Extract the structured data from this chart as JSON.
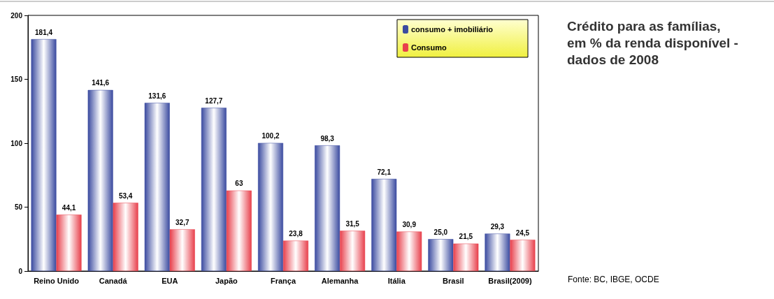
{
  "chart_data": {
    "type": "bar",
    "title": "Crédito para as famílias, em % da renda disponível - dados de 2008",
    "categories": [
      "Reino Unido",
      "Canadá",
      "EUA",
      "Japão",
      "França",
      "Alemanha",
      "Itália",
      "Brasil",
      "Brasil(2009)"
    ],
    "series": [
      {
        "name": "consumo + imobiliário",
        "color": "#3b4ba0",
        "values": [
          181.4,
          141.6,
          131.6,
          127.7,
          100.2,
          98.3,
          72.1,
          25.0,
          29.3
        ],
        "value_labels": [
          "181,4",
          "141,6",
          "131,6",
          "127,7",
          "100,2",
          "98,3",
          "72,1",
          "25,0",
          "29,3"
        ]
      },
      {
        "name": "Consumo",
        "color": "#e8404c",
        "values": [
          44.1,
          53.4,
          32.7,
          63,
          23.8,
          31.5,
          30.9,
          21.5,
          24.5
        ],
        "value_labels": [
          "44,1",
          "53,4",
          "32,7",
          "63",
          "23,8",
          "31,5",
          "30,9",
          "21,5",
          "24,5"
        ]
      }
    ],
    "ylim": [
      0,
      200
    ],
    "yticks": [
      0,
      50,
      100,
      150,
      200
    ],
    "grid": false,
    "legend": "top right",
    "annotations": [
      "Fonte: BC, IBGE, OCDE"
    ]
  }
}
